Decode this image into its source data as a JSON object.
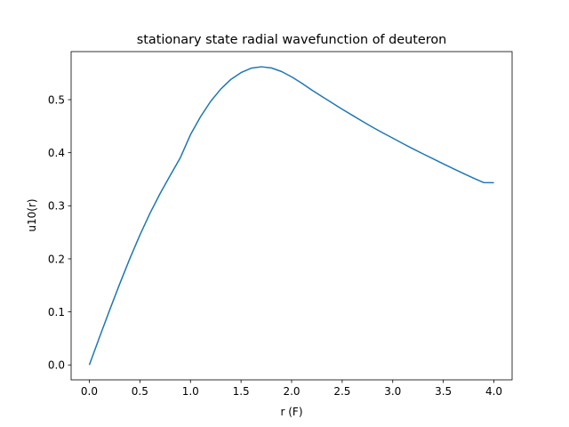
{
  "chart_data": {
    "type": "line",
    "title": "stationary state radial wavefunction of deuteron",
    "xlabel": "r (F)",
    "ylabel": "u10(r)",
    "xlim": [
      -0.18,
      4.18
    ],
    "ylim": [
      -0.0281,
      0.5906
    ],
    "xticks": [
      0.0,
      0.5,
      1.0,
      1.5,
      2.0,
      2.5,
      3.0,
      3.5,
      4.0
    ],
    "xtick_labels": [
      "0.0",
      "0.5",
      "1.0",
      "1.5",
      "2.0",
      "2.5",
      "3.0",
      "3.5",
      "4.0"
    ],
    "yticks": [
      0.0,
      0.1,
      0.2,
      0.3,
      0.4,
      0.5
    ],
    "ytick_labels": [
      "0.0",
      "0.1",
      "0.2",
      "0.3",
      "0.4",
      "0.5"
    ],
    "grid": false,
    "series": [
      {
        "color": "#1f77b4",
        "x": [
          0.0,
          0.1,
          0.2,
          0.3,
          0.4,
          0.5,
          0.6,
          0.7,
          0.8,
          0.9,
          1.0,
          1.1,
          1.2,
          1.3,
          1.4,
          1.5,
          1.6,
          1.7,
          1.8,
          1.9,
          2.0,
          2.1,
          2.2,
          2.3,
          2.4,
          2.5,
          2.6,
          2.7,
          2.8,
          2.9,
          3.0,
          3.1,
          3.2,
          3.3,
          3.4,
          3.5,
          3.6,
          3.7,
          3.8,
          3.9,
          4.0
        ],
        "y": [
          0.0,
          0.0519,
          0.103,
          0.1527,
          0.2002,
          0.2449,
          0.286,
          0.3232,
          0.3573,
          0.3907,
          0.434,
          0.468,
          0.4969,
          0.5201,
          0.5383,
          0.551,
          0.5593,
          0.562,
          0.5598,
          0.5531,
          0.543,
          0.531,
          0.518,
          0.506,
          0.494,
          0.482,
          0.4706,
          0.4592,
          0.4481,
          0.4376,
          0.4275,
          0.4173,
          0.4073,
          0.3978,
          0.3884,
          0.379,
          0.3698,
          0.3608,
          0.352,
          0.3436,
          0.3434
        ]
      }
    ]
  }
}
